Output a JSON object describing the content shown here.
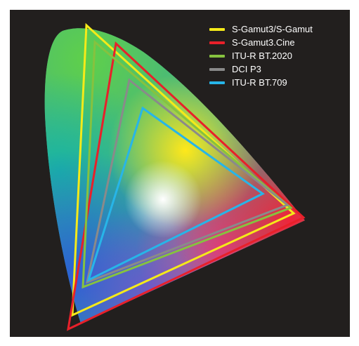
{
  "legend": {
    "items": [
      {
        "label": "S-Gamut3/S-Gamut",
        "color": "#f5ea19"
      },
      {
        "label": "S-Gamut3.Cine",
        "color": "#e8202a"
      },
      {
        "label": "ITU-R BT.2020",
        "color": "#86c23f"
      },
      {
        "label": "DCI P3",
        "color": "#8a8a8a"
      },
      {
        "label": "ITU-R BT.709",
        "color": "#27b5e8"
      }
    ]
  },
  "background_color": "#221f1e"
}
